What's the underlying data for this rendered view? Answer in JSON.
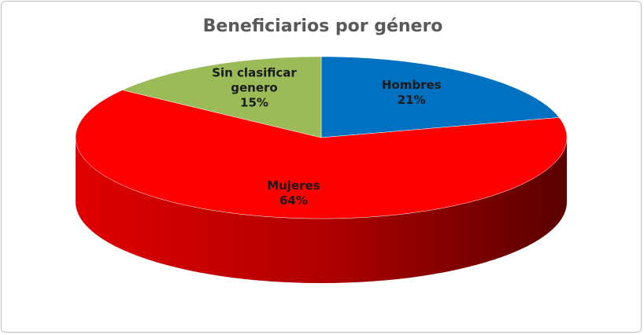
{
  "chart_data": {
    "type": "pie",
    "title": "Beneficiarios por género",
    "categories": [
      "Hombres",
      "Mujeres",
      "Sin clasificar genero"
    ],
    "values": [
      21,
      64,
      15
    ],
    "value_labels": [
      "21%",
      "64%",
      "15%"
    ],
    "colors": [
      "#0070c0",
      "#ff0000",
      "#9bbb59"
    ]
  }
}
